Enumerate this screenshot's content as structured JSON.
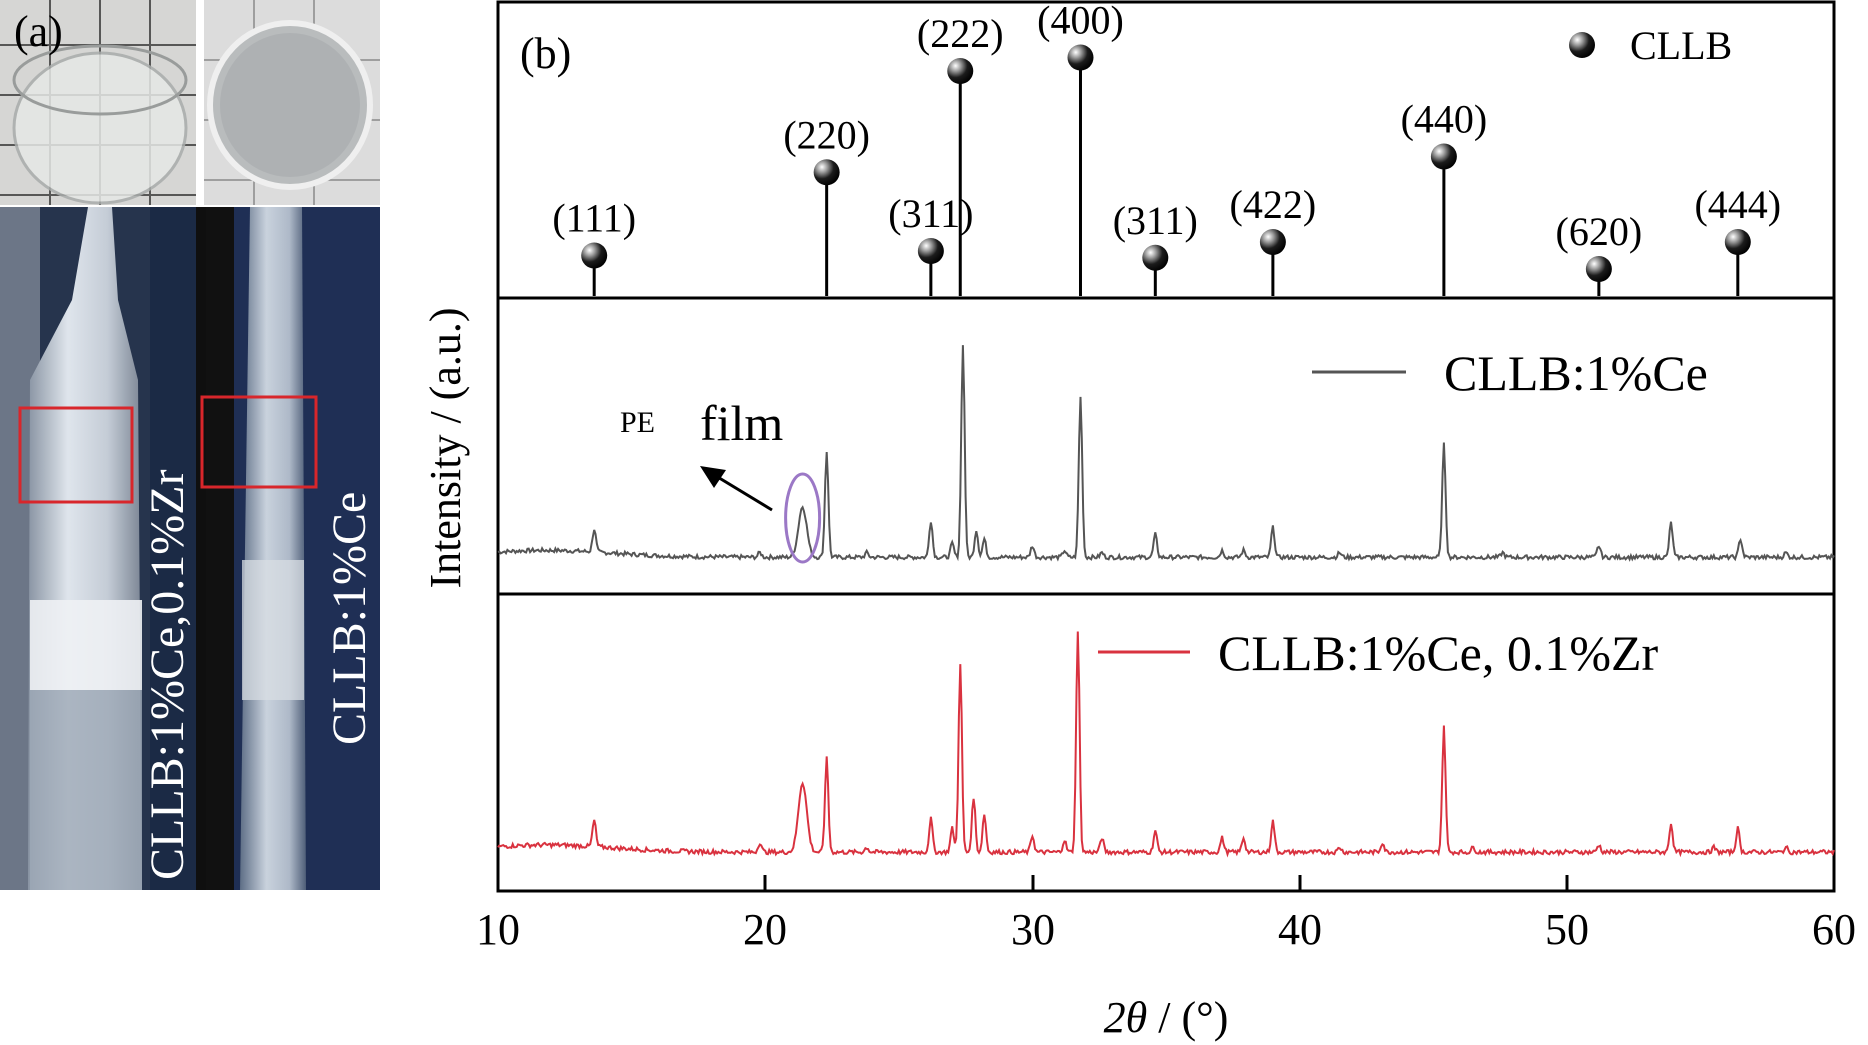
{
  "panel_a": {
    "label": "(a)",
    "crystal_left_label": "CLLB:1%Ce,0.1%Zr",
    "crystal_right_label": "CLLB:1%Ce"
  },
  "chart_data": {
    "type": "line",
    "panel_label": "(b)",
    "xlabel_symbol": "2θ",
    "xlabel_unit": " / (°)",
    "ylabel": "Intensity / (a.u.)",
    "xlim": [
      10,
      60
    ],
    "x_ticks": [
      "10",
      "20",
      "30",
      "40",
      "50",
      "60"
    ],
    "reference": {
      "legend": "CLLB",
      "peaks": [
        {
          "x": 13.6,
          "h": 0.18,
          "hkl": "(111)"
        },
        {
          "x": 22.3,
          "h": 0.55,
          "hkl": "(220)"
        },
        {
          "x": 26.2,
          "h": 0.2,
          "hkl": "(311)"
        },
        {
          "x": 27.3,
          "h": 1.0,
          "hkl": "(222)"
        },
        {
          "x": 31.8,
          "h": 1.06,
          "hkl": "(400)"
        },
        {
          "x": 34.6,
          "h": 0.17,
          "hkl": "(311)"
        },
        {
          "x": 39.0,
          "h": 0.24,
          "hkl": "(422)"
        },
        {
          "x": 45.4,
          "h": 0.62,
          "hkl": "(440)"
        },
        {
          "x": 51.2,
          "h": 0.12,
          "hkl": "(620)"
        },
        {
          "x": 56.4,
          "h": 0.24,
          "hkl": "(444)"
        }
      ]
    },
    "series": [
      {
        "name": "CLLB:1%Ce",
        "color": "#555555",
        "peaks": [
          [
            13.6,
            0.1
          ],
          [
            19.8,
            0.02
          ],
          [
            21.4,
            0.22
          ],
          [
            22.3,
            0.46
          ],
          [
            23.8,
            0.02
          ],
          [
            26.2,
            0.16
          ],
          [
            27.0,
            0.06
          ],
          [
            27.4,
            0.92
          ],
          [
            27.9,
            0.12
          ],
          [
            28.2,
            0.08
          ],
          [
            30.0,
            0.05
          ],
          [
            31.2,
            0.03
          ],
          [
            31.8,
            0.7
          ],
          [
            32.6,
            0.02
          ],
          [
            34.6,
            0.1
          ],
          [
            37.1,
            0.03
          ],
          [
            37.9,
            0.03
          ],
          [
            39.0,
            0.13
          ],
          [
            41.5,
            0.02
          ],
          [
            45.4,
            0.49
          ],
          [
            47.6,
            0.02
          ],
          [
            51.2,
            0.05
          ],
          [
            53.9,
            0.15
          ],
          [
            56.5,
            0.08
          ],
          [
            58.2,
            0.02
          ]
        ]
      },
      {
        "name": "CLLB:1%Ce, 0.1%Zr",
        "color": "#d9323f",
        "peaks": [
          [
            13.6,
            0.11
          ],
          [
            19.8,
            0.04
          ],
          [
            21.4,
            0.29
          ],
          [
            22.3,
            0.39
          ],
          [
            23.8,
            0.02
          ],
          [
            26.2,
            0.14
          ],
          [
            27.0,
            0.1
          ],
          [
            27.3,
            0.78
          ],
          [
            27.8,
            0.23
          ],
          [
            28.2,
            0.16
          ],
          [
            30.0,
            0.07
          ],
          [
            31.2,
            0.05
          ],
          [
            31.7,
            0.92
          ],
          [
            32.6,
            0.06
          ],
          [
            34.6,
            0.09
          ],
          [
            37.1,
            0.06
          ],
          [
            37.9,
            0.06
          ],
          [
            39.0,
            0.13
          ],
          [
            41.5,
            0.02
          ],
          [
            43.1,
            0.04
          ],
          [
            45.4,
            0.52
          ],
          [
            46.5,
            0.02
          ],
          [
            51.2,
            0.03
          ],
          [
            53.9,
            0.12
          ],
          [
            55.5,
            0.02
          ],
          [
            56.4,
            0.1
          ],
          [
            58.2,
            0.02
          ]
        ]
      }
    ],
    "annotations": {
      "pe_small": "PE",
      "pe_film": "film",
      "pe_x": 21.4
    },
    "colors": {
      "marker": "#000000",
      "frame": "#000000"
    }
  }
}
